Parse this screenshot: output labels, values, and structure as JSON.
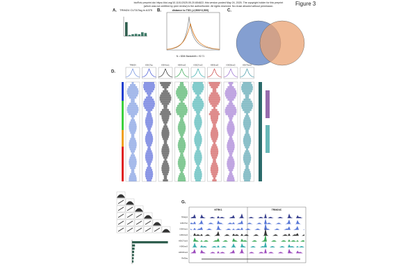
{
  "header": {
    "preprint_line1": "bioRxiv preprint doi: https://doi.org/10.1101/2025.05.20.654822; this version posted May 24, 2025. The copyright holder for this preprint",
    "preprint_line2": "(which was not certified by peer review) is the author/funder. All rights reserved. No reuse allowed without permission.",
    "figure": "Figure 3"
  },
  "panel_a": {
    "label": "A.",
    "title": "TRIM24 CUT&Tag in A375",
    "values": [
      0.72,
      0.06,
      0.1,
      0.12,
      0.1,
      0.2,
      0.16
    ],
    "ylim": [
      0,
      1
    ]
  },
  "panel_b": {
    "label": "B.",
    "title": "distance to TSS (-2,500/+2,500)",
    "note": "N = 8266   Bandwidth = 92.71"
  },
  "panel_c": {
    "label": "C."
  },
  "panel_d": {
    "label": "D.",
    "columns": [
      "TRIM24",
      "H3K27ac",
      "H3K4me1",
      "H3K4me3",
      "H3K27me3",
      "H3K9me3",
      "H3K36me3",
      "H3K79me2"
    ]
  },
  "panel_f": {
    "values": [
      8.6,
      0.7,
      0.6,
      0.5,
      0.45,
      0.4,
      0.35
    ],
    "xlim": [
      0,
      10
    ]
  },
  "panel_g": {
    "label": "G.",
    "genes": [
      "NTRK1",
      "TRIM24C"
    ],
    "tracks": [
      "TRIM24",
      "H3K27ac",
      "H3K4me1",
      "H3K4me3",
      "H3K27me3",
      "H3K9me3",
      "H3K36me3",
      "RefSeq"
    ]
  }
}
